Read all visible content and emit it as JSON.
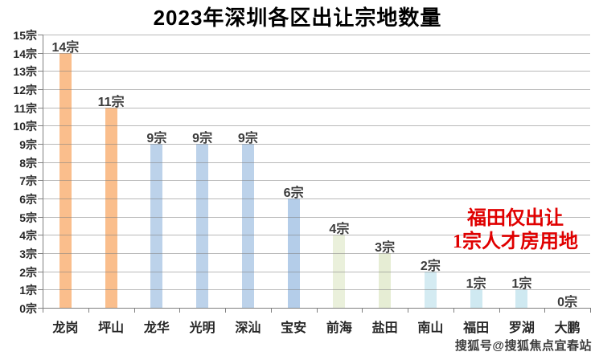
{
  "title": "2023年深圳各区出让宗地数量",
  "watermark": "搜狐号@搜狐焦点宜春站",
  "chart_data": {
    "type": "bar",
    "title": "2023年深圳各区出让宗地数量",
    "categories": [
      "龙岗",
      "坪山",
      "龙华",
      "光明",
      "深汕",
      "宝安",
      "前海",
      "盐田",
      "南山",
      "福田",
      "罗湖",
      "大鹏"
    ],
    "values": [
      14,
      11,
      9,
      9,
      9,
      6,
      4,
      3,
      2,
      1,
      1,
      0
    ],
    "value_labels": [
      "14宗",
      "11宗",
      "9宗",
      "9宗",
      "9宗",
      "6宗",
      "4宗",
      "3宗",
      "2宗",
      "1宗",
      "1宗",
      "0宗"
    ],
    "bar_colors": [
      "#FABE8C",
      "#FABE8C",
      "#BCD2EA",
      "#BCD2EA",
      "#BCD2EA",
      "#B4CDE9",
      "#EAF0DB",
      "#E6EDD4",
      "#D4EBF2",
      "#CFE9F1",
      "#CFE9F1",
      "#D4EBF2"
    ],
    "unit": "宗",
    "ylim": [
      0,
      15
    ],
    "y_ticks": [
      "15宗",
      "14宗",
      "13宗",
      "12宗",
      "11宗",
      "10宗",
      "9宗",
      "8宗",
      "7宗",
      "6宗",
      "5宗",
      "4宗",
      "3宗",
      "2宗",
      "1宗",
      "0宗"
    ],
    "grid": true,
    "legend": "none",
    "xlabel": "",
    "ylabel": "",
    "annotation": {
      "lines": [
        "福田仅出让",
        "1宗人才房用地"
      ],
      "color": "#E00000"
    }
  },
  "colors": {
    "bar_orange": "#FABE8C",
    "bar_blue": "#BCD2EA",
    "bar_pale_green": "#E9F0DA",
    "bar_cyan": "#D2EAF2",
    "gridline": "#9E9E9E",
    "axis": "#808080",
    "value_label": "#3B3B3B",
    "annotation_red": "#E00000",
    "title_black": "#000000"
  }
}
